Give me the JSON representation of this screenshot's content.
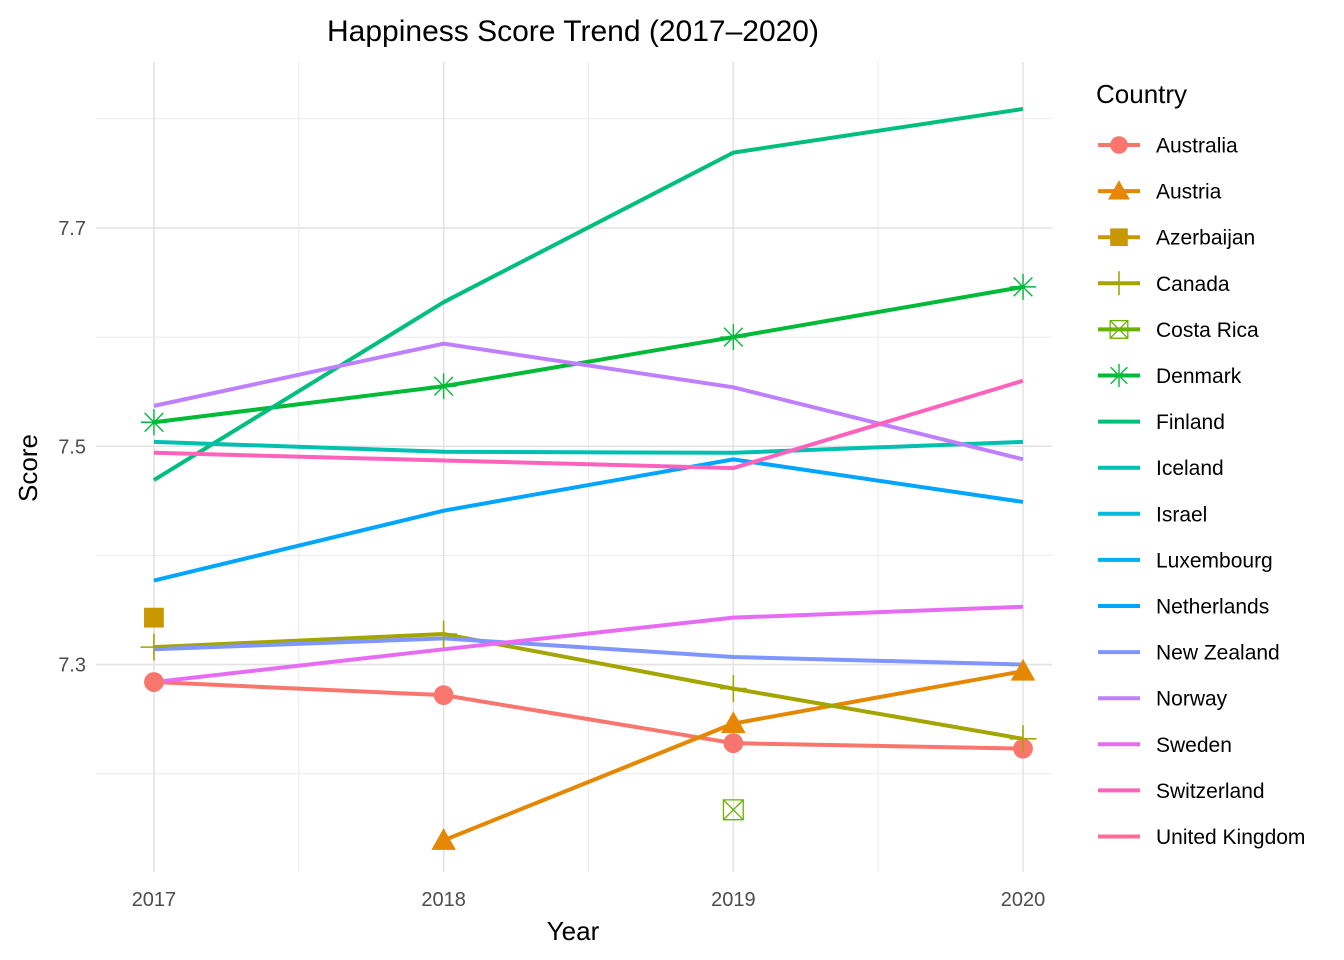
{
  "chart_data": {
    "type": "line",
    "title": "Happiness Score Trend (2017–2020)",
    "xlabel": "Year",
    "ylabel": "Score",
    "x": [
      2017,
      2018,
      2019,
      2020
    ],
    "x_tick_labels": [
      "2017",
      "2018",
      "2019",
      "2020"
    ],
    "y_ticks": [
      7.3,
      7.5,
      7.7
    ],
    "y_tick_labels": [
      "7.3",
      "7.5",
      "7.7"
    ],
    "xlim": [
      2016.8,
      2020.1
    ],
    "ylim": [
      7.11,
      7.852
    ],
    "grid": true,
    "legend_title": "Country",
    "legend_position": "right",
    "series": [
      {
        "name": "Australia",
        "color": "#F8766D",
        "marker": "circle",
        "values": [
          7.284,
          7.272,
          7.228,
          7.223
        ]
      },
      {
        "name": "Austria",
        "color": "#E58700",
        "marker": "triangle",
        "values": [
          null,
          7.139,
          7.246,
          7.294
        ]
      },
      {
        "name": "Azerbaijan",
        "color": "#C99800",
        "marker": "square",
        "values": [
          7.343,
          null,
          null,
          null
        ]
      },
      {
        "name": "Canada",
        "color": "#A3A500",
        "marker": "plus",
        "values": [
          7.316,
          7.328,
          7.278,
          7.232
        ]
      },
      {
        "name": "Costa Rica",
        "color": "#6BB100",
        "marker": "boxcross",
        "values": [
          null,
          null,
          7.167,
          null
        ]
      },
      {
        "name": "Denmark",
        "color": "#00BA38",
        "marker": "asterisk",
        "values": [
          7.522,
          7.555,
          7.6,
          7.646
        ]
      },
      {
        "name": "Finland",
        "color": "#00BF7D",
        "marker": "none",
        "values": [
          7.469,
          7.632,
          7.769,
          7.809
        ]
      },
      {
        "name": "Iceland",
        "color": "#00C0AF",
        "marker": "none",
        "values": [
          7.504,
          7.495,
          7.494,
          7.504
        ]
      },
      {
        "name": "Israel",
        "color": "#00BCD8",
        "marker": "none",
        "values": [
          null,
          null,
          null,
          null
        ]
      },
      {
        "name": "Luxembourg",
        "color": "#00B0F6",
        "marker": "none",
        "values": [
          null,
          null,
          null,
          null
        ]
      },
      {
        "name": "Netherlands",
        "color": "#00A5FF",
        "marker": "none",
        "values": [
          7.377,
          7.441,
          7.488,
          7.449
        ]
      },
      {
        "name": "New Zealand",
        "color": "#7F96FF",
        "marker": "none",
        "values": [
          7.314,
          7.324,
          7.307,
          7.3
        ]
      },
      {
        "name": "Norway",
        "color": "#BF80FF",
        "marker": "none",
        "values": [
          7.537,
          7.594,
          7.554,
          7.488
        ]
      },
      {
        "name": "Sweden",
        "color": "#E76BF3",
        "marker": "none",
        "values": [
          7.284,
          7.314,
          7.343,
          7.353
        ]
      },
      {
        "name": "Switzerland",
        "color": "#FF62BC",
        "marker": "none",
        "values": [
          7.494,
          7.487,
          7.48,
          7.56
        ]
      },
      {
        "name": "United Kingdom",
        "color": "#FF6C91",
        "marker": "none",
        "values": [
          null,
          null,
          null,
          null
        ]
      }
    ]
  }
}
